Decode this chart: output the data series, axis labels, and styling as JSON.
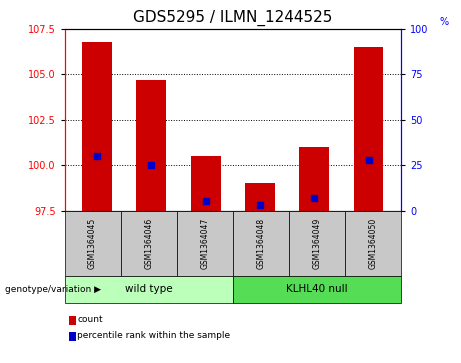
{
  "title": "GDS5295 / ILMN_1244525",
  "samples": [
    "GSM1364045",
    "GSM1364046",
    "GSM1364047",
    "GSM1364048",
    "GSM1364049",
    "GSM1364050"
  ],
  "groups": [
    {
      "name": "wild type",
      "color": "#bbffbb",
      "samples_idx": [
        0,
        1,
        2
      ]
    },
    {
      "name": "KLHL40 null",
      "color": "#55dd55",
      "samples_idx": [
        3,
        4,
        5
      ]
    }
  ],
  "bar_bottom": 97.5,
  "count_values": [
    106.8,
    104.7,
    100.5,
    99.0,
    101.0,
    106.5
  ],
  "percentile_values": [
    30.0,
    25.0,
    5.0,
    3.0,
    7.0,
    28.0
  ],
  "ylim_left": [
    97.5,
    107.5
  ],
  "ylim_right": [
    0,
    100
  ],
  "yticks_left": [
    97.5,
    100.0,
    102.5,
    105.0,
    107.5
  ],
  "yticks_right": [
    0,
    25,
    50,
    75,
    100
  ],
  "bar_color": "#cc0000",
  "blue_color": "#0000cc",
  "title_fontsize": 11,
  "tick_fontsize": 7,
  "genotype_label": "genotype/variation",
  "legend_count": "count",
  "legend_percentile": "percentile rank within the sample",
  "sample_box_color": "#c8c8c8"
}
